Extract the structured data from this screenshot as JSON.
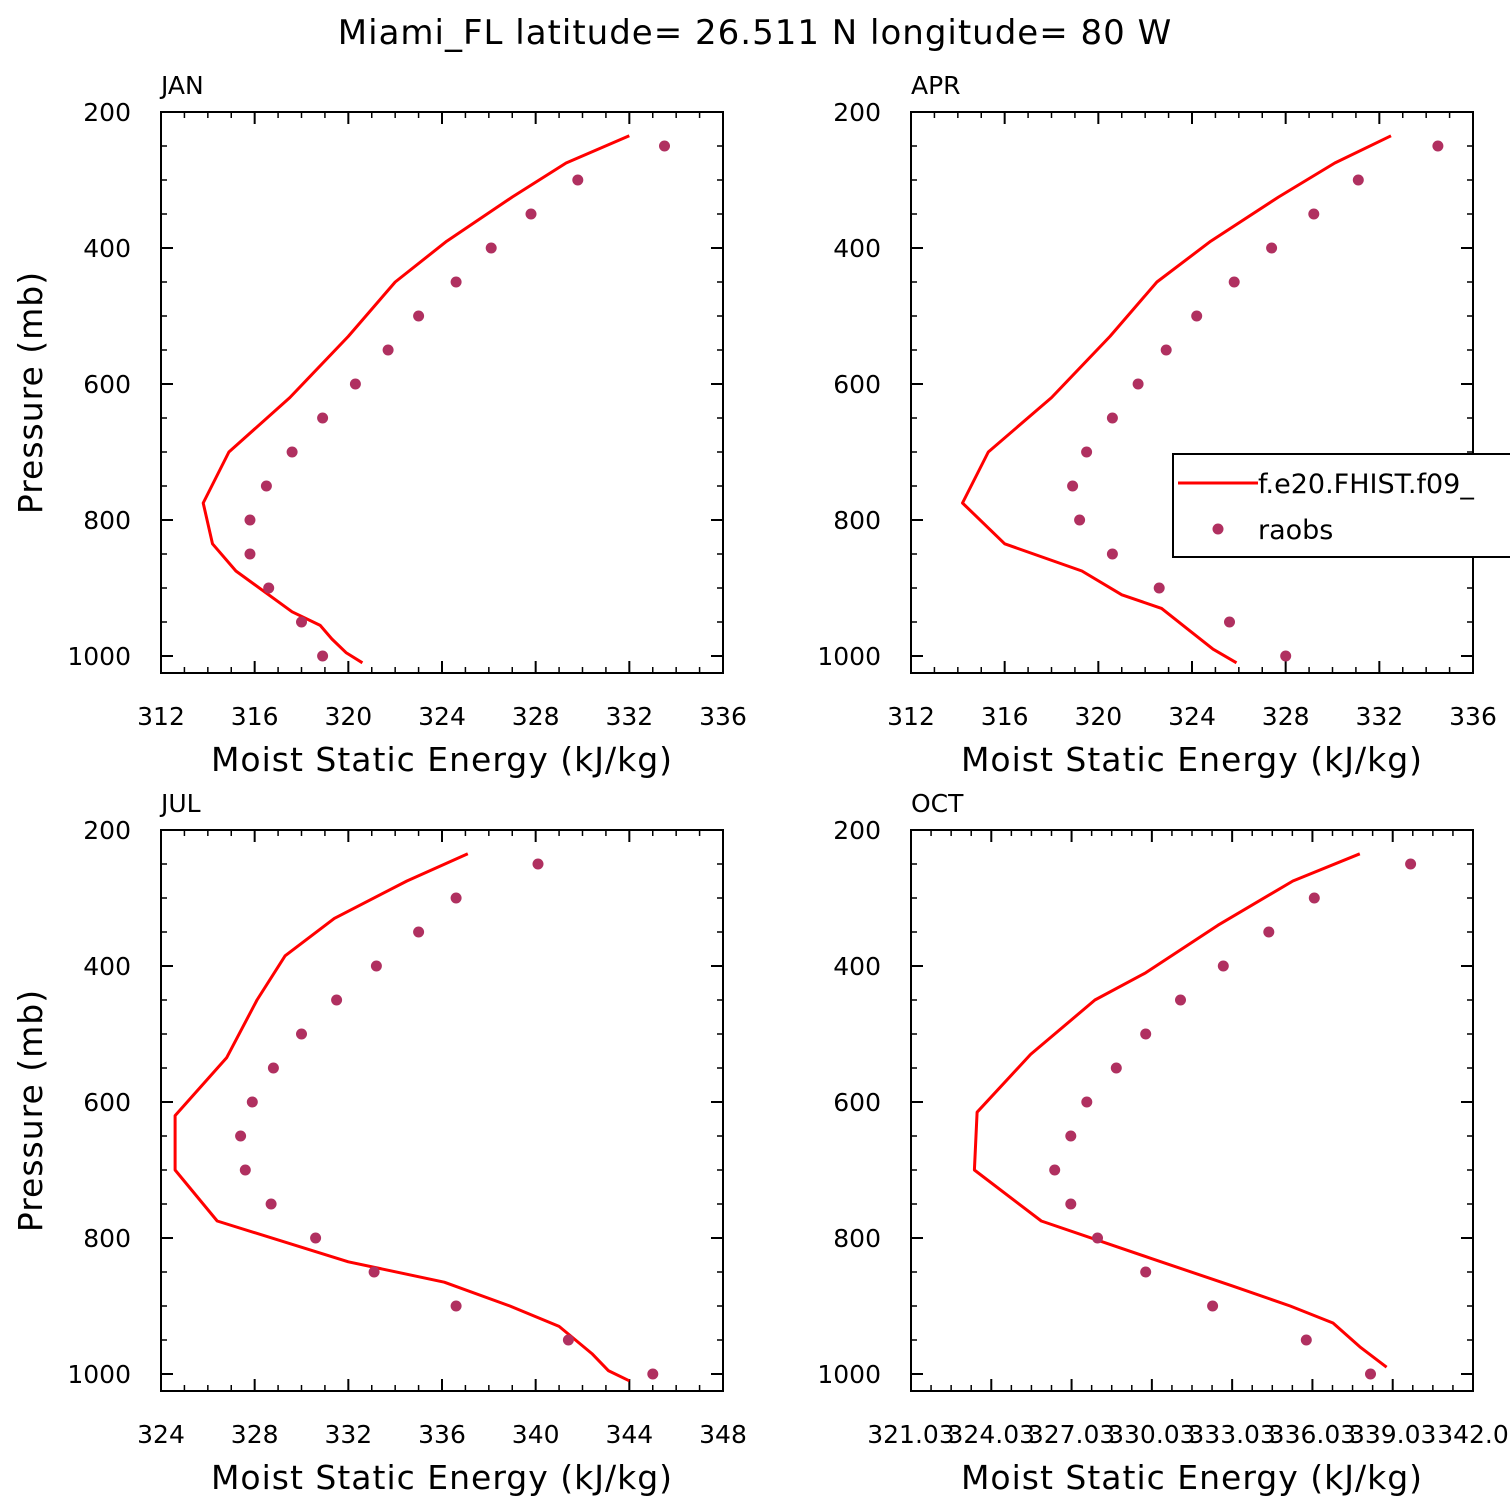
{
  "title": "Miami_FL  latitude= 26.511 N longitude= 80 W",
  "colors": {
    "model": "#ff0000",
    "obs": "#b03060",
    "axes": "#000000"
  },
  "legend": {
    "placement": "right, inside APR panel (clipped)",
    "model_label": "f.e20.FHIST.f09_",
    "obs_label": "raobs"
  },
  "chart_data": [
    {
      "type": "line",
      "panel": "JAN",
      "title": "JAN",
      "xlabel": "Moist Static Energy (kJ/kg)",
      "ylabel": "Pressure (mb)",
      "xlim": [
        312,
        336
      ],
      "ylim": [
        1025,
        200
      ],
      "y_inverted": true,
      "xticks": [
        "312",
        "316",
        "320",
        "324",
        "328",
        "332",
        "336"
      ],
      "yticks": [
        "200",
        "400",
        "600",
        "800",
        "1000"
      ],
      "series": [
        {
          "name": "f.e20.FHIST.f09_",
          "kind": "line",
          "x": [
            332.0,
            329.3,
            327.0,
            324.2,
            322.0,
            320.0,
            317.5,
            314.9,
            313.8,
            314.2,
            315.2,
            317.6,
            318.8,
            319.3,
            319.9,
            320.6
          ],
          "y": [
            235,
            275,
            325,
            390,
            450,
            530,
            620,
            700,
            775,
            835,
            875,
            935,
            955,
            975,
            995,
            1010
          ]
        },
        {
          "name": "raobs",
          "kind": "scatter",
          "x": [
            333.5,
            329.8,
            327.8,
            326.1,
            324.6,
            323.0,
            321.7,
            320.3,
            318.9,
            317.6,
            316.5,
            315.8,
            315.8,
            316.6,
            318.0,
            318.9
          ],
          "y": [
            250,
            300,
            350,
            400,
            450,
            500,
            550,
            600,
            650,
            700,
            750,
            800,
            850,
            900,
            950,
            1000
          ]
        }
      ]
    },
    {
      "type": "line",
      "panel": "APR",
      "title": "APR",
      "xlabel": "Moist Static Energy (kJ/kg)",
      "ylabel": "",
      "xlim": [
        312,
        336
      ],
      "ylim": [
        1025,
        200
      ],
      "y_inverted": true,
      "xticks": [
        "312",
        "316",
        "320",
        "324",
        "328",
        "332",
        "336"
      ],
      "yticks": [
        "200",
        "400",
        "600",
        "800",
        "1000"
      ],
      "series": [
        {
          "name": "f.e20.FHIST.f09_",
          "kind": "line",
          "x": [
            332.5,
            330.1,
            327.7,
            324.8,
            322.5,
            320.5,
            318.0,
            315.3,
            314.2,
            316.0,
            319.3,
            321.0,
            322.7,
            323.8,
            324.9,
            325.9
          ],
          "y": [
            235,
            275,
            325,
            390,
            450,
            530,
            620,
            700,
            775,
            835,
            875,
            910,
            930,
            960,
            990,
            1010
          ]
        },
        {
          "name": "raobs",
          "kind": "scatter",
          "x": [
            334.5,
            331.1,
            329.2,
            327.4,
            325.8,
            324.2,
            322.9,
            321.7,
            320.6,
            319.5,
            318.9,
            319.2,
            320.6,
            322.6,
            325.6,
            328.0
          ],
          "y": [
            250,
            300,
            350,
            400,
            450,
            500,
            550,
            600,
            650,
            700,
            750,
            800,
            850,
            900,
            950,
            1000
          ]
        }
      ]
    },
    {
      "type": "line",
      "panel": "JUL",
      "title": "JUL",
      "xlabel": "Moist Static Energy (kJ/kg)",
      "ylabel": "Pressure (mb)",
      "xlim": [
        324,
        348
      ],
      "ylim": [
        1025,
        200
      ],
      "y_inverted": true,
      "xticks": [
        "324",
        "328",
        "332",
        "336",
        "340",
        "344",
        "348"
      ],
      "yticks": [
        "200",
        "400",
        "600",
        "800",
        "1000"
      ],
      "series": [
        {
          "name": "f.e20.FHIST.f09_",
          "kind": "line",
          "x": [
            337.1,
            334.5,
            331.4,
            329.3,
            328.1,
            326.8,
            324.6,
            324.6,
            326.4,
            332.0,
            336.1,
            338.9,
            341.0,
            342.4,
            343.1,
            344.0
          ],
          "y": [
            235,
            275,
            330,
            385,
            450,
            535,
            620,
            700,
            775,
            835,
            865,
            900,
            930,
            970,
            995,
            1010
          ]
        },
        {
          "name": "raobs",
          "kind": "scatter",
          "x": [
            340.1,
            336.6,
            335.0,
            333.2,
            331.5,
            330.0,
            328.8,
            327.9,
            327.4,
            327.6,
            328.7,
            330.6,
            333.1,
            336.6,
            341.4,
            345.0
          ],
          "y": [
            250,
            300,
            350,
            400,
            450,
            500,
            550,
            600,
            650,
            700,
            750,
            800,
            850,
            900,
            950,
            1000
          ]
        }
      ]
    },
    {
      "type": "line",
      "panel": "OCT",
      "title": "OCT",
      "xlabel": "Moist Static Energy (kJ/kg)",
      "ylabel": "",
      "xlim": [
        321.03,
        342.03
      ],
      "ylim": [
        1025,
        200
      ],
      "y_inverted": true,
      "xticks": [
        "321.03",
        "324.03",
        "327.03",
        "330.03",
        "333.03",
        "336.03",
        "339.03",
        "342.0"
      ],
      "yticks": [
        "200",
        "400",
        "600",
        "800",
        "1000"
      ],
      "series": [
        {
          "name": "f.e20.FHIST.f09_",
          "kind": "line",
          "x": [
            337.8,
            335.3,
            332.5,
            329.8,
            327.9,
            325.5,
            323.5,
            323.4,
            325.9,
            330.0,
            333.0,
            335.2,
            336.8,
            337.8,
            338.8
          ],
          "y": [
            235,
            275,
            340,
            410,
            450,
            530,
            615,
            700,
            775,
            830,
            870,
            900,
            925,
            960,
            990
          ]
        },
        {
          "name": "raobs",
          "kind": "scatter",
          "x": [
            339.7,
            336.1,
            334.4,
            332.7,
            331.1,
            329.8,
            328.7,
            327.6,
            327.0,
            326.4,
            327.0,
            328.0,
            329.8,
            332.3,
            335.8,
            338.2
          ],
          "y": [
            250,
            300,
            350,
            400,
            450,
            500,
            550,
            600,
            650,
            700,
            750,
            800,
            850,
            900,
            950,
            1000
          ]
        }
      ]
    }
  ]
}
